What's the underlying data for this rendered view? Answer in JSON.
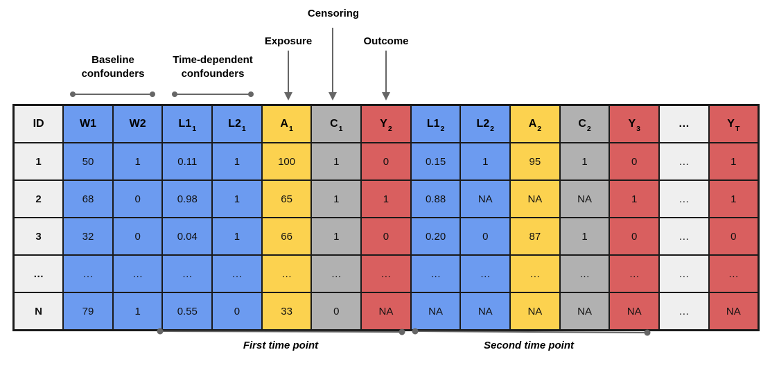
{
  "colors": {
    "blue": "#6c9bf0",
    "yellow": "#fcd24f",
    "gray": "#b1b1b1",
    "red": "#d95f5f",
    "light": "#efefef",
    "line": "#666666"
  },
  "annotations": {
    "censoring": {
      "label": "Censoring"
    },
    "exposure": {
      "label": "Exposure"
    },
    "outcome": {
      "label": "Outcome"
    },
    "baseline_confounders": {
      "label": "Baseline confounders"
    },
    "time_dependent_confounders": {
      "label": "Time-dependent confounders"
    },
    "first_time_point": {
      "label": "First time point"
    },
    "second_time_point": {
      "label": "Second time point"
    }
  },
  "table": {
    "columns": [
      {
        "base": "ID",
        "sub": "",
        "color": "light"
      },
      {
        "base": "W1",
        "sub": "",
        "color": "blue"
      },
      {
        "base": "W2",
        "sub": "",
        "color": "blue"
      },
      {
        "base": "L1",
        "sub": "1",
        "color": "blue"
      },
      {
        "base": "L2",
        "sub": "1",
        "color": "blue"
      },
      {
        "base": "A",
        "sub": "1",
        "color": "yellow"
      },
      {
        "base": "C",
        "sub": "1",
        "color": "gray"
      },
      {
        "base": "Y",
        "sub": "2",
        "color": "red"
      },
      {
        "base": "L1",
        "sub": "2",
        "color": "blue"
      },
      {
        "base": "L2",
        "sub": "2",
        "color": "blue"
      },
      {
        "base": "A",
        "sub": "2",
        "color": "yellow"
      },
      {
        "base": "C",
        "sub": "2",
        "color": "gray"
      },
      {
        "base": "Y",
        "sub": "3",
        "color": "red"
      },
      {
        "base": "…",
        "sub": "",
        "color": "light"
      },
      {
        "base": "Y",
        "sub": "T",
        "color": "red"
      }
    ],
    "rows": [
      [
        "1",
        "50",
        "1",
        "0.11",
        "1",
        "100",
        "1",
        "0",
        "0.15",
        "1",
        "95",
        "1",
        "0",
        "…",
        "1"
      ],
      [
        "2",
        "68",
        "0",
        "0.98",
        "1",
        "65",
        "1",
        "1",
        "0.88",
        "NA",
        "NA",
        "NA",
        "1",
        "…",
        "1"
      ],
      [
        "3",
        "32",
        "0",
        "0.04",
        "1",
        "66",
        "1",
        "0",
        "0.20",
        "0",
        "87",
        "1",
        "0",
        "…",
        "0"
      ],
      [
        "…",
        "…",
        "…",
        "…",
        "…",
        "…",
        "…",
        "…",
        "…",
        "…",
        "…",
        "…",
        "…",
        "…",
        "…"
      ],
      [
        "N",
        "79",
        "1",
        "0.55",
        "0",
        "33",
        "0",
        "NA",
        "NA",
        "NA",
        "NA",
        "NA",
        "NA",
        "…",
        "NA"
      ]
    ]
  }
}
